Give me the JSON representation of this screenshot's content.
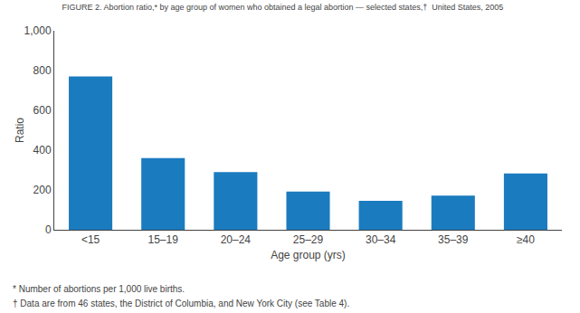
{
  "chart_data": {
    "type": "bar",
    "title": "FIGURE 2. Abortion ratio,* by age group of women who obtained a legal abortion — selected states,†  United States, 2005",
    "xlabel": "Age group (yrs)",
    "ylabel": "Ratio",
    "categories": [
      "<15",
      "15–19",
      "20–24",
      "25–29",
      "30–34",
      "35–39",
      "≥40"
    ],
    "values": [
      770,
      360,
      290,
      192,
      145,
      172,
      283
    ],
    "color": "#1a7bbf",
    "ylim": [
      0,
      1000
    ],
    "yticks": [
      0,
      200,
      400,
      600,
      800,
      {
        "value": 1000,
        "label": "1,000"
      }
    ],
    "grid": false,
    "annotations": [
      "* Number of abortions per 1,000 live births.",
      "† Data are from 46 states, the District of Columbia, and New York City (see Table 4)."
    ]
  }
}
